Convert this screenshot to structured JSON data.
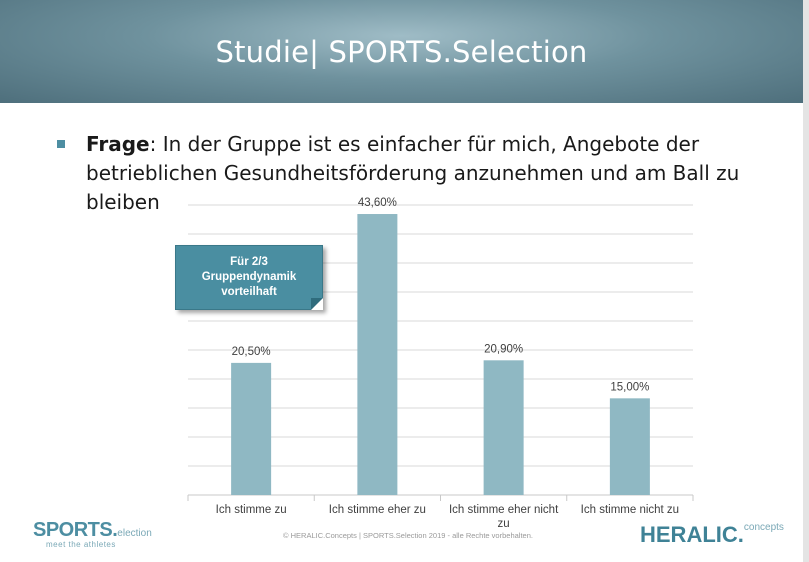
{
  "header": {
    "title": "Studie| SPORTS.Selection"
  },
  "question": {
    "label": "Frage",
    "text": ": In der Gruppe ist es einfacher für mich, Angebote der betrieblichen Gesundheitsförderung anzunehmen und am Ball zu bleiben"
  },
  "callout": {
    "text": "Für 2/3 Gruppendynamik vorteilhaft"
  },
  "chart_data": {
    "type": "bar",
    "categories": [
      "Ich stimme zu",
      "Ich stimme eher zu",
      "Ich stimme eher nicht zu",
      "Ich stimme nicht zu"
    ],
    "values": [
      20.5,
      43.6,
      20.9,
      15.0
    ],
    "data_labels": [
      "20,50%",
      "43,60%",
      "20,90%",
      "15,00%"
    ],
    "ylim": [
      0,
      45
    ],
    "grid": true,
    "bar_color": "#8fb8c3",
    "grid_color": "#d9d9d9"
  },
  "footer": {
    "logo_left": "SPORTS.",
    "logo_left_suffix": "election",
    "tagline": "meet the athletes",
    "copyright": "© HERALIC.Concepts | SPORTS.Selection 2019 - alle Rechte vorbehalten.",
    "logo_right": "HERALIC.",
    "logo_right_suffix": "concepts"
  },
  "colors": {
    "accent": "#4d8ea2",
    "header_bg": "#6f929e"
  }
}
